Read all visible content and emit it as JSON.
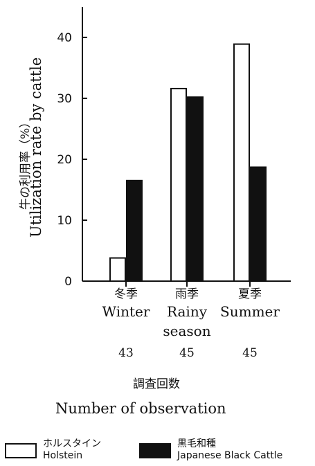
{
  "chart_data": {
    "type": "bar",
    "ylabel_jp": "牛の利用率（%）",
    "ylabel": "Utilization rate by cattle",
    "ylim": [
      0,
      45
    ],
    "yticks": [
      0,
      10,
      20,
      30,
      40
    ],
    "categories": [
      {
        "jp": "冬季",
        "en": "Winter",
        "en2": "",
        "n": "43"
      },
      {
        "jp": "雨季",
        "en": "Rainy",
        "en2": "season",
        "n": "45"
      },
      {
        "jp": "夏季",
        "en": "Summer",
        "en2": "",
        "n": "45"
      }
    ],
    "series": [
      {
        "name_jp": "ホルスタイン",
        "name": "Holstein",
        "fill": "#ffffff",
        "values": [
          3.8,
          31.6,
          38.9
        ]
      },
      {
        "name_jp": "黒毛和種",
        "name": "Japanese Black Cattle",
        "fill": "#111111",
        "values": [
          16.5,
          30.2,
          18.7
        ]
      }
    ],
    "xlabel_jp": "調査回数",
    "xlabel": "Number of observation"
  }
}
